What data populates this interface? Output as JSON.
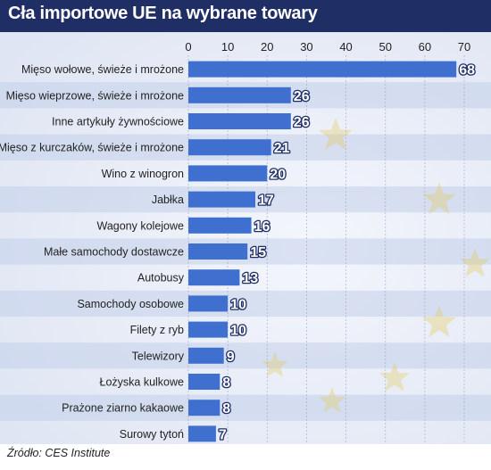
{
  "title": "Cła importowe UE na wybrane towary",
  "source": "Źródło: CES Institute",
  "colors": {
    "header": "#1f2f66",
    "bar": "#3f6fcf",
    "row_light": "#dfe5f3",
    "row_stripe": "#c3d0ea",
    "label_text": "#222222",
    "value_text": "#ffffff",
    "star": "#e3c64c"
  },
  "chart_data": {
    "type": "bar",
    "orientation": "horizontal",
    "xlim": [
      0,
      70
    ],
    "ticks": [
      0,
      10,
      20,
      30,
      40,
      50,
      60,
      70
    ],
    "axis_position": "top",
    "grid": true,
    "categories": [
      "Mięso wołowe, świeże i mrożone",
      "Mięso wieprzowe, świeże i mrożone",
      "Inne artykuły żywnościowe",
      "Mięso z kurczaków, świeże i mrożone",
      "Wino z winogron",
      "Jabłka",
      "Wagony kolejowe",
      "Małe samochody dostawcze",
      "Autobusy",
      "Samochody osobowe",
      "Filety z ryb",
      "Telewizory",
      "Łożyska kulkowe",
      "Prażone ziarno kakaowe",
      "Surowy tytoń"
    ],
    "values": [
      68,
      26,
      26,
      21,
      20,
      17,
      16,
      15,
      13,
      10,
      10,
      9,
      8,
      8,
      7
    ],
    "data_labels": [
      "68",
      "26",
      "26",
      "21",
      "20",
      "17",
      "16",
      "15",
      "13",
      "10",
      "10",
      "9",
      "8",
      "8",
      "7"
    ]
  }
}
